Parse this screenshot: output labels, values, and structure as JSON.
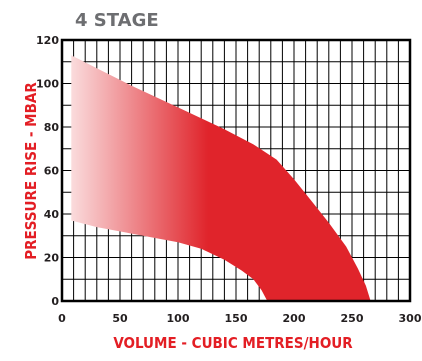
{
  "chart_data": {
    "type": "area",
    "title": "4 STAGE",
    "xlabel": "VOLUME - CUBIC METRES/HOUR",
    "ylabel": "PRESSURE RISE - MBAR",
    "xlim": [
      0,
      300
    ],
    "ylim": [
      0,
      120
    ],
    "xticks": [
      "0",
      "50",
      "100",
      "150",
      "200",
      "250",
      "300"
    ],
    "yticks": [
      "0",
      "20",
      "40",
      "60",
      "80",
      "100",
      "120"
    ],
    "grid": true,
    "band": {
      "upper": [
        [
          8,
          113
        ],
        [
          30,
          107
        ],
        [
          60,
          99
        ],
        [
          100,
          89
        ],
        [
          140,
          79
        ],
        [
          165,
          72
        ],
        [
          185,
          65
        ],
        [
          200,
          56
        ],
        [
          215,
          46
        ],
        [
          230,
          36
        ],
        [
          245,
          25
        ],
        [
          255,
          15
        ],
        [
          262,
          7
        ],
        [
          266,
          0
        ]
      ],
      "lower": [
        [
          8,
          37
        ],
        [
          30,
          34
        ],
        [
          60,
          31
        ],
        [
          100,
          27
        ],
        [
          120,
          24
        ],
        [
          140,
          19
        ],
        [
          155,
          14
        ],
        [
          165,
          10
        ],
        [
          172,
          5
        ],
        [
          177,
          0
        ]
      ]
    },
    "fill_gradient": {
      "start_color": "#fbe1e2",
      "end_color": "#e0242b"
    }
  }
}
